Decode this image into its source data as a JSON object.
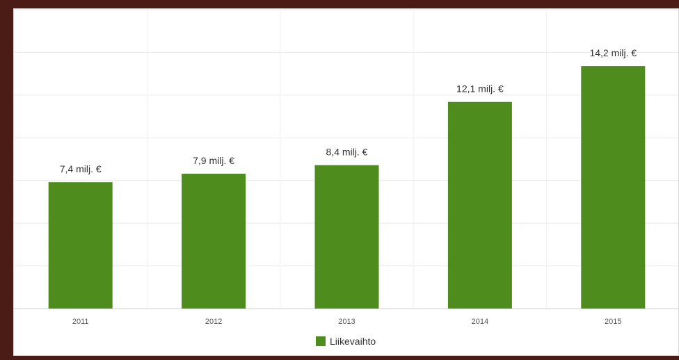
{
  "chart_data": {
    "type": "bar",
    "categories": [
      "2011",
      "2012",
      "2013",
      "2014",
      "2015"
    ],
    "values": [
      7.4,
      7.9,
      8.4,
      12.1,
      14.2
    ],
    "data_labels": [
      "7,4 milj. €",
      "7,9 milj. €",
      "8,4 milj. €",
      "12,1 milj. €",
      "14,2 milj. €"
    ],
    "series": [
      {
        "name": "Liikevaihto",
        "values": [
          7.4,
          7.9,
          8.4,
          12.1,
          14.2
        ]
      }
    ],
    "ylim": [
      0,
      17.5
    ],
    "grid": true,
    "legend": "bottom-center",
    "title": "",
    "xlabel": "",
    "ylabel": ""
  },
  "colors": {
    "bar": "#4e8c1e",
    "background": "#4a1c15",
    "panel": "#ffffff"
  }
}
